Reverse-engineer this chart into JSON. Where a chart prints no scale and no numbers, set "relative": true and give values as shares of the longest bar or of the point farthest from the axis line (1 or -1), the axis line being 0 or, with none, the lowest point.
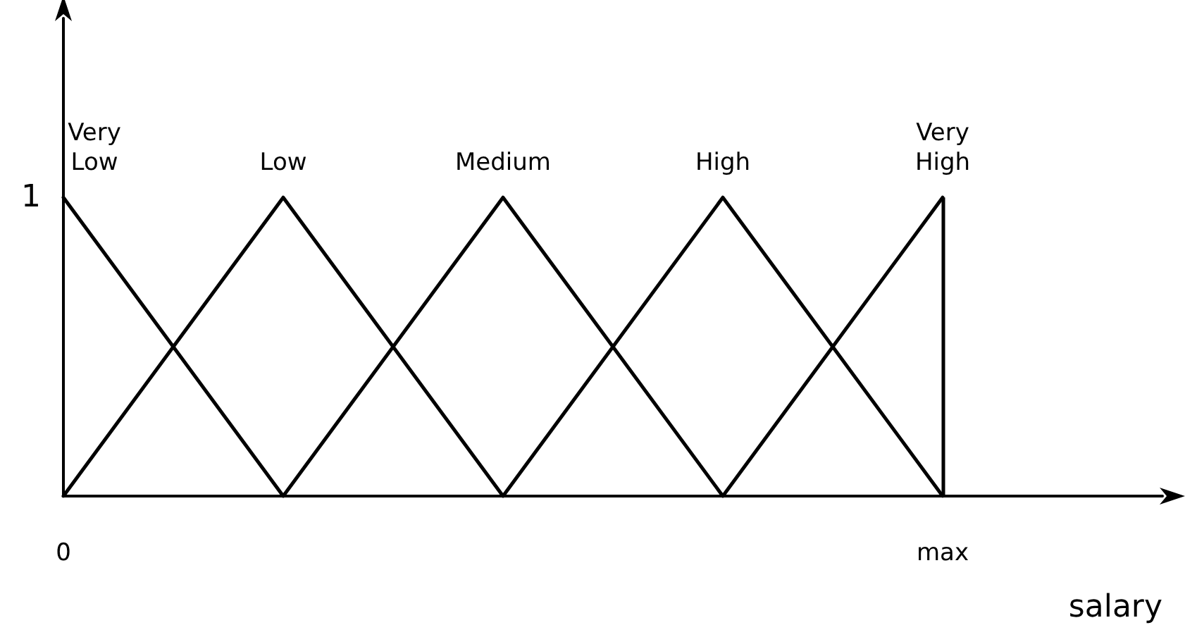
{
  "chart_data": {
    "type": "line",
    "relative": true,
    "xlabel": "salary",
    "legend": false,
    "grid": false,
    "marker": "none",
    "line_style": "solid",
    "categories": [
      "0",
      null,
      null,
      null,
      "max",
      null
    ],
    "annotations": [
      "1"
    ],
    "series": [
      {
        "name": "Very Low",
        "color": "#000000",
        "values": [
          1,
          0,
          null,
          null,
          null,
          null
        ]
      },
      {
        "name": "Low",
        "color": "#000000",
        "values": [
          0,
          1,
          0,
          null,
          null,
          null
        ]
      },
      {
        "name": "Medium",
        "color": "#000000",
        "values": [
          null,
          0,
          1,
          0,
          null,
          null
        ]
      },
      {
        "name": "High",
        "color": "#000000",
        "values": [
          null,
          null,
          0,
          1,
          0,
          null
        ]
      },
      {
        "name": "Very High",
        "color": "#000000",
        "values": [
          null,
          null,
          null,
          0,
          1,
          null
        ]
      }
    ],
    "ref_lines": [
      {
        "axis": "x",
        "value": "max",
        "color": "#000000",
        "line_style": "solid"
      }
    ]
  }
}
